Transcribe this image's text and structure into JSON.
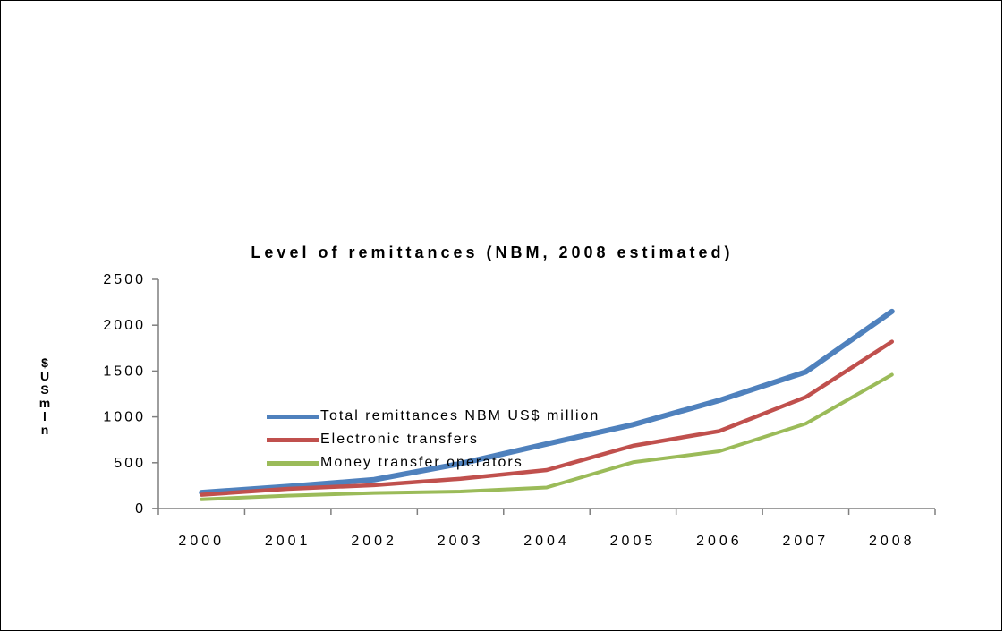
{
  "chart_data": {
    "type": "line",
    "title": "Level of remittances (NBM, 2008 estimated)",
    "xlabel": "",
    "ylabel": "$US mln",
    "categories": [
      "2000",
      "2001",
      "2002",
      "2003",
      "2004",
      "2005",
      "2006",
      "2007",
      "2008"
    ],
    "ylim": [
      0,
      2500
    ],
    "yticks": [
      "0",
      "500",
      "1000",
      "1500",
      "2000",
      "2500"
    ],
    "grid": false,
    "legend_position": "bottom",
    "series": [
      {
        "name": "Total remittances NBM US$ million",
        "color": "#4F81BD",
        "values": [
          175,
          240,
          315,
          490,
          705,
          915,
          1180,
          1490,
          2150
        ]
      },
      {
        "name": "Electronic transfers",
        "color": "#C0504D",
        "values": [
          150,
          215,
          255,
          325,
          420,
          685,
          845,
          1215,
          1820
        ]
      },
      {
        "name": "Money transfer operators",
        "color": "#9BBB59",
        "values": [
          100,
          140,
          170,
          185,
          230,
          505,
          625,
          925,
          1460
        ]
      }
    ]
  }
}
